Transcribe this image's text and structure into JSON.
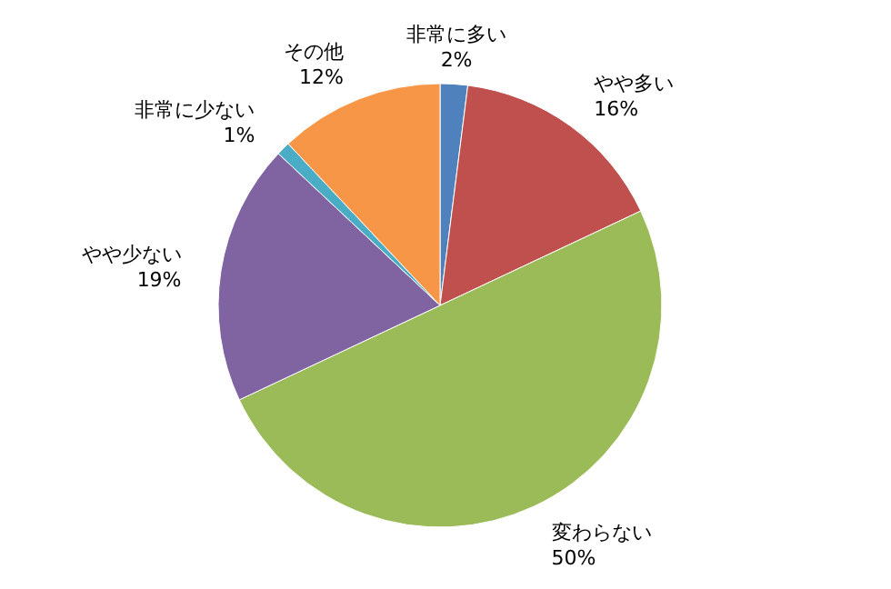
{
  "chart_data": {
    "type": "pie",
    "categories": [
      "非常に多い",
      "やや多い",
      "変わらない",
      "やや少ない",
      "非常に少ない",
      "その他"
    ],
    "values": [
      2,
      16,
      50,
      19,
      1,
      12
    ],
    "colors": [
      "#4f81bd",
      "#c0504d",
      "#9bbb59",
      "#8064a2",
      "#4bacc6",
      "#f79646"
    ],
    "value_labels": [
      "2%",
      "16%",
      "50%",
      "19%",
      "1%",
      "12%"
    ]
  }
}
